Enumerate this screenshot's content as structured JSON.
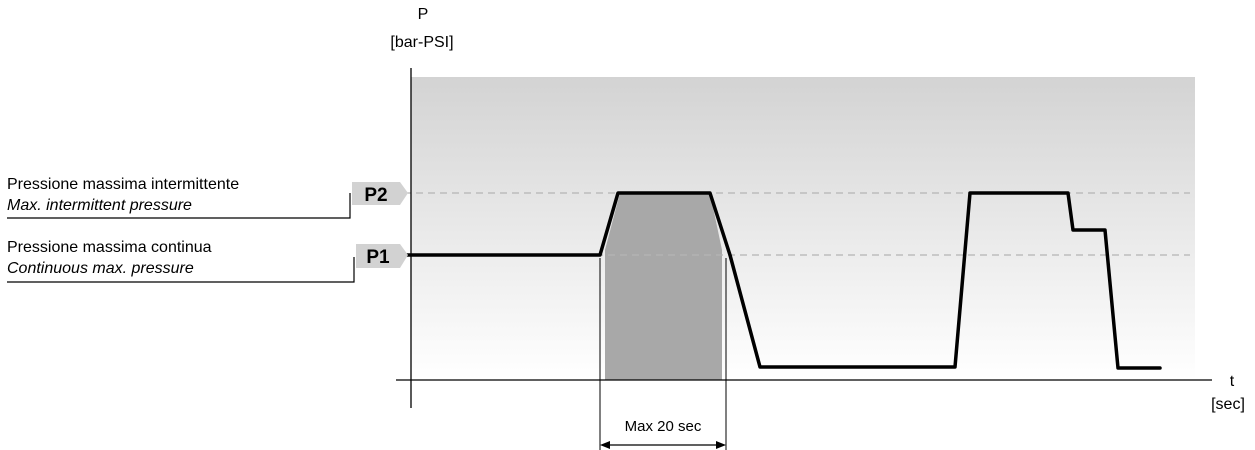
{
  "axes": {
    "y_symbol": "P",
    "y_unit": "[bar-PSI]",
    "x_symbol": "t",
    "x_unit": "[sec]"
  },
  "levels": {
    "p2": {
      "tag": "P2",
      "label_it": "Pressione massima intermittente",
      "label_en": "Max. intermittent pressure"
    },
    "p1": {
      "tag": "P1",
      "label_it": "Pressione massima continua",
      "label_en": "Continuous max. pressure"
    }
  },
  "dimension": {
    "label": "Max 20 sec"
  },
  "colors": {
    "background_gradient_top": "#d3d3d3",
    "background_gradient_bottom": "#ffffff",
    "shaded_interval": "#a8a8a8",
    "pressure_curve": "#000000",
    "reference_dashes": "#b4b4b4",
    "tag_fill": "#d2d2d2"
  }
}
